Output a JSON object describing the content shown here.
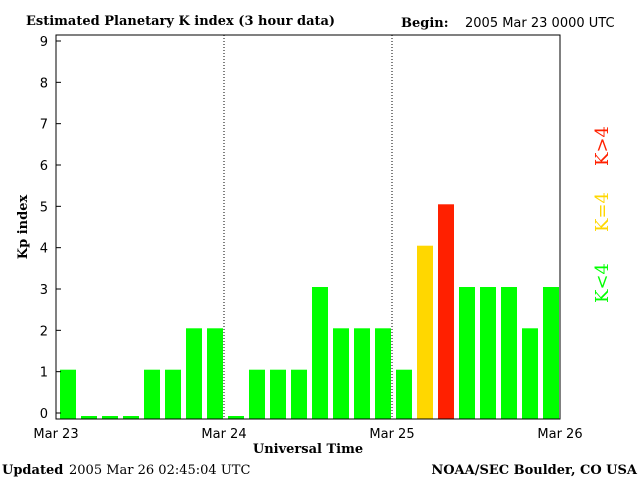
{
  "chart_data": {
    "type": "bar",
    "title": "Estimated Planetary K index (3 hour data)",
    "begin_label": "Begin:",
    "begin_value": "2005 Mar 23 0000 UTC",
    "xlabel": "Universal Time",
    "ylabel": "Kp index",
    "ylim": [
      0,
      9
    ],
    "yticks": [
      "0",
      "1",
      "2",
      "3",
      "4",
      "5",
      "6",
      "7",
      "8",
      "9"
    ],
    "x_tick_labels": [
      "Mar 23",
      "Mar 24",
      "Mar 25",
      "Mar 26"
    ],
    "values": [
      1,
      0,
      0,
      0,
      1,
      1,
      2,
      2,
      0,
      1,
      1,
      1,
      3,
      2,
      2,
      2,
      1,
      4,
      5,
      3,
      3,
      3,
      2,
      3
    ],
    "colors": {
      "low": "#00ff00",
      "equal": "#ffd700",
      "high": "#ff2000"
    },
    "legend": [
      {
        "label": "K<4",
        "color": "#00ff00"
      },
      {
        "label": "K=4",
        "color": "#ffd700"
      },
      {
        "label": "K>4",
        "color": "#ff2000"
      }
    ]
  },
  "footer": {
    "updated_label": "Updated",
    "updated_value": "2005 Mar 26 02:45:04 UTC",
    "credit": "NOAA/SEC Boulder, CO USA"
  }
}
